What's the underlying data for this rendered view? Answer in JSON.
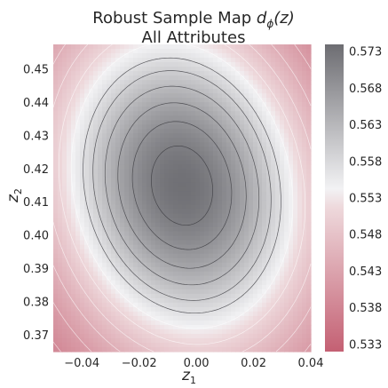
{
  "chart_data": {
    "type": "contour",
    "title_line1": "Robust Sample Map ",
    "title_math": "d",
    "title_math_sub": "ϕ",
    "title_math_arg": "(z)",
    "subtitle": "All Attributes",
    "xlabel": "z",
    "xlabel_sub": "1",
    "ylabel": "z",
    "ylabel_sub": "2",
    "xlim": [
      -0.05,
      0.04
    ],
    "ylim": [
      0.365,
      0.4575
    ],
    "x_ticks": [
      -0.04,
      -0.02,
      0.0,
      0.02,
      0.04
    ],
    "x_tick_labels": [
      "−0.04",
      "−0.02",
      "0.00",
      "0.02",
      "0.04"
    ],
    "y_ticks": [
      0.37,
      0.38,
      0.39,
      0.4,
      0.41,
      0.42,
      0.43,
      0.44,
      0.45
    ],
    "y_tick_labels": [
      "0.37",
      "0.38",
      "0.39",
      "0.40",
      "0.41",
      "0.42",
      "0.43",
      "0.44",
      "0.45"
    ],
    "colorbar": {
      "range": [
        0.532,
        0.574
      ],
      "ticks": [
        0.533,
        0.538,
        0.543,
        0.548,
        0.553,
        0.558,
        0.563,
        0.568,
        0.573
      ],
      "tick_labels": [
        "0.533",
        "0.538",
        "0.543",
        "0.548",
        "0.553",
        "0.558",
        "0.563",
        "0.568",
        "0.573"
      ],
      "colormap": [
        "#c46073",
        "#eed9dc",
        "#f2f2f4",
        "#6d6d72"
      ]
    },
    "peak": {
      "x": -0.005,
      "y": 0.415,
      "value": 0.5735
    },
    "value_range": [
      0.533,
      0.5735
    ],
    "contour_levels": [
      0.536,
      0.539,
      0.542,
      0.545,
      0.548,
      0.551,
      0.554,
      0.557,
      0.5595,
      0.5625,
      0.5655,
      0.5685,
      0.5715
    ]
  }
}
